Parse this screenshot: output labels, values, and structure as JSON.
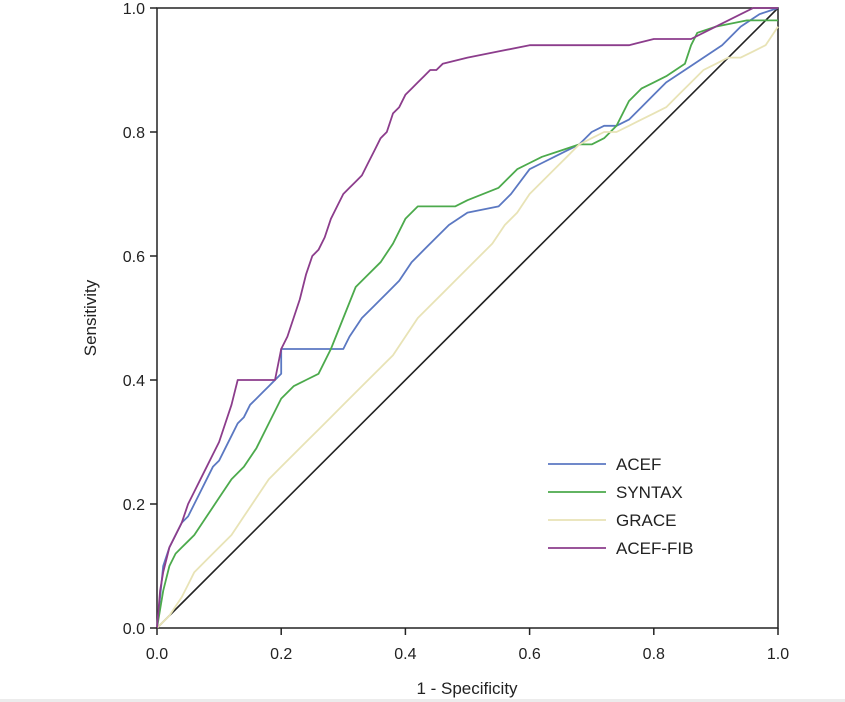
{
  "chart_data": {
    "type": "line",
    "title": "",
    "xlabel": "1 - Specificity",
    "ylabel": "Sensitivity",
    "xlim": [
      0,
      1
    ],
    "ylim": [
      0,
      1
    ],
    "xticks": [
      "0.0",
      "0.2",
      "0.4",
      "0.6",
      "0.8",
      "1.0"
    ],
    "yticks": [
      "0.0",
      "0.2",
      "0.4",
      "0.6",
      "0.8",
      "1.0"
    ],
    "legend_position": "bottom-right",
    "reference_line": {
      "name": "reference",
      "color": "#222222",
      "x": [
        0,
        1
      ],
      "y": [
        0,
        1
      ]
    },
    "series": [
      {
        "name": "ACEF",
        "color": "#5b78c2",
        "x": [
          0,
          0.005,
          0.01,
          0.02,
          0.03,
          0.04,
          0.05,
          0.06,
          0.07,
          0.08,
          0.09,
          0.1,
          0.11,
          0.12,
          0.13,
          0.14,
          0.15,
          0.16,
          0.17,
          0.18,
          0.19,
          0.2,
          0.2,
          0.3,
          0.31,
          0.33,
          0.35,
          0.37,
          0.39,
          0.41,
          0.43,
          0.45,
          0.47,
          0.5,
          0.55,
          0.57,
          0.6,
          0.62,
          0.64,
          0.66,
          0.68,
          0.7,
          0.72,
          0.74,
          0.76,
          0.78,
          0.8,
          0.82,
          0.85,
          0.88,
          0.91,
          0.94,
          0.97,
          1.0
        ],
        "y": [
          0,
          0.05,
          0.1,
          0.13,
          0.15,
          0.17,
          0.18,
          0.2,
          0.22,
          0.24,
          0.26,
          0.27,
          0.29,
          0.31,
          0.33,
          0.34,
          0.36,
          0.37,
          0.38,
          0.39,
          0.4,
          0.41,
          0.45,
          0.45,
          0.47,
          0.5,
          0.52,
          0.54,
          0.56,
          0.59,
          0.61,
          0.63,
          0.65,
          0.67,
          0.68,
          0.7,
          0.74,
          0.75,
          0.76,
          0.77,
          0.78,
          0.8,
          0.81,
          0.81,
          0.82,
          0.84,
          0.86,
          0.88,
          0.9,
          0.92,
          0.94,
          0.97,
          0.99,
          1.0
        ]
      },
      {
        "name": "SYNTAX",
        "color": "#4caa4c",
        "x": [
          0,
          0.01,
          0.02,
          0.03,
          0.04,
          0.05,
          0.06,
          0.08,
          0.1,
          0.12,
          0.14,
          0.16,
          0.18,
          0.2,
          0.22,
          0.24,
          0.26,
          0.28,
          0.3,
          0.32,
          0.34,
          0.36,
          0.38,
          0.4,
          0.42,
          0.45,
          0.48,
          0.5,
          0.55,
          0.58,
          0.6,
          0.62,
          0.65,
          0.68,
          0.7,
          0.72,
          0.74,
          0.76,
          0.78,
          0.8,
          0.82,
          0.85,
          0.86,
          0.87,
          0.9,
          0.95,
          1.0
        ],
        "y": [
          0,
          0.06,
          0.1,
          0.12,
          0.13,
          0.14,
          0.15,
          0.18,
          0.21,
          0.24,
          0.26,
          0.29,
          0.33,
          0.37,
          0.39,
          0.4,
          0.41,
          0.45,
          0.5,
          0.55,
          0.57,
          0.59,
          0.62,
          0.66,
          0.68,
          0.68,
          0.68,
          0.69,
          0.71,
          0.74,
          0.75,
          0.76,
          0.77,
          0.78,
          0.78,
          0.79,
          0.81,
          0.85,
          0.87,
          0.88,
          0.89,
          0.91,
          0.94,
          0.96,
          0.97,
          0.98,
          0.98
        ]
      },
      {
        "name": "GRACE",
        "color": "#e8e3b6",
        "x": [
          0,
          0.02,
          0.04,
          0.05,
          0.06,
          0.08,
          0.1,
          0.12,
          0.14,
          0.16,
          0.18,
          0.2,
          0.22,
          0.24,
          0.26,
          0.28,
          0.3,
          0.32,
          0.34,
          0.36,
          0.38,
          0.4,
          0.42,
          0.44,
          0.46,
          0.48,
          0.5,
          0.52,
          0.54,
          0.56,
          0.58,
          0.6,
          0.62,
          0.64,
          0.66,
          0.68,
          0.7,
          0.72,
          0.74,
          0.76,
          0.78,
          0.8,
          0.82,
          0.84,
          0.86,
          0.88,
          0.9,
          0.92,
          0.94,
          0.96,
          0.98,
          1.0
        ],
        "y": [
          0,
          0.02,
          0.05,
          0.07,
          0.09,
          0.11,
          0.13,
          0.15,
          0.18,
          0.21,
          0.24,
          0.26,
          0.28,
          0.3,
          0.32,
          0.34,
          0.36,
          0.38,
          0.4,
          0.42,
          0.44,
          0.47,
          0.5,
          0.52,
          0.54,
          0.56,
          0.58,
          0.6,
          0.62,
          0.65,
          0.67,
          0.7,
          0.72,
          0.74,
          0.76,
          0.78,
          0.79,
          0.8,
          0.8,
          0.81,
          0.82,
          0.83,
          0.84,
          0.86,
          0.88,
          0.9,
          0.91,
          0.92,
          0.92,
          0.93,
          0.94,
          0.97
        ]
      },
      {
        "name": "ACEF-FIB",
        "color": "#8c3d8c",
        "x": [
          0,
          0.005,
          0.01,
          0.02,
          0.03,
          0.04,
          0.05,
          0.06,
          0.07,
          0.08,
          0.09,
          0.1,
          0.11,
          0.12,
          0.13,
          0.15,
          0.17,
          0.19,
          0.2,
          0.21,
          0.22,
          0.23,
          0.24,
          0.25,
          0.26,
          0.27,
          0.28,
          0.29,
          0.3,
          0.31,
          0.32,
          0.33,
          0.34,
          0.35,
          0.36,
          0.37,
          0.38,
          0.39,
          0.4,
          0.41,
          0.42,
          0.43,
          0.44,
          0.45,
          0.46,
          0.5,
          0.55,
          0.6,
          0.7,
          0.76,
          0.8,
          0.86,
          0.9,
          0.94,
          0.96,
          1.0
        ],
        "y": [
          0,
          0.06,
          0.09,
          0.13,
          0.15,
          0.17,
          0.2,
          0.22,
          0.24,
          0.26,
          0.28,
          0.3,
          0.33,
          0.36,
          0.4,
          0.4,
          0.4,
          0.4,
          0.45,
          0.47,
          0.5,
          0.53,
          0.57,
          0.6,
          0.61,
          0.63,
          0.66,
          0.68,
          0.7,
          0.71,
          0.72,
          0.73,
          0.75,
          0.77,
          0.79,
          0.8,
          0.83,
          0.84,
          0.86,
          0.87,
          0.88,
          0.89,
          0.9,
          0.9,
          0.91,
          0.92,
          0.93,
          0.94,
          0.94,
          0.94,
          0.95,
          0.95,
          0.97,
          0.99,
          1.0,
          1.0
        ]
      }
    ]
  }
}
